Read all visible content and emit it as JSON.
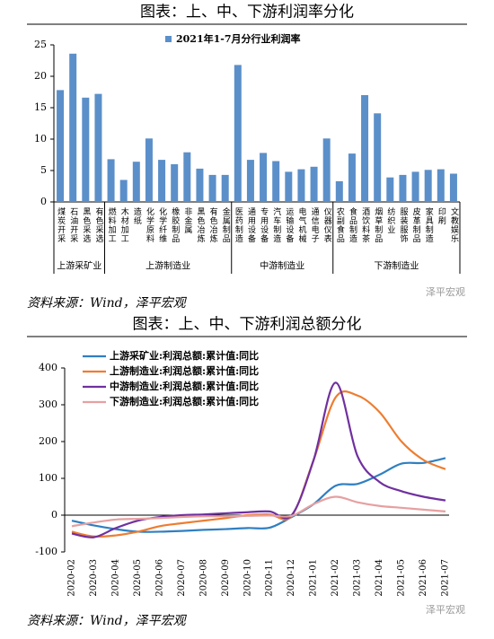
{
  "chart_data": [
    {
      "type": "bar",
      "title": "图表：上、中、下游利润率分化",
      "legend": "2021年1-7月分行业利润率",
      "color": "#5b8fc9",
      "categories": [
        "煤炭开采",
        "石油开采",
        "黑色采选",
        "有色采选",
        "燃料加工",
        "木材加工",
        "造纸",
        "化学原料",
        "化学纤维",
        "橡胶制品",
        "非金属",
        "黑色冶炼",
        "有色冶炼",
        "金属制品",
        "医药制造",
        "通用设备",
        "专用设备",
        "汽车制造",
        "运输设备",
        "电气机械",
        "通信电子",
        "仪器仪表",
        "农副食品",
        "食品制造",
        "酒饮料茶",
        "烟草制品",
        "纺织业",
        "服装服饰",
        "皮革制品",
        "家具制造",
        "印刷",
        "文教娱乐"
      ],
      "values": [
        17.8,
        23.6,
        16.6,
        17.2,
        6.8,
        3.5,
        6.4,
        10.1,
        6.7,
        6.0,
        7.9,
        5.3,
        4.3,
        4.3,
        21.8,
        6.7,
        7.8,
        6.5,
        4.8,
        5.2,
        5.6,
        10.1,
        3.3,
        7.7,
        17.0,
        14.1,
        3.9,
        4.3,
        4.8,
        5.1,
        5.2,
        4.5
      ],
      "groups": [
        "上游采矿业",
        "上游制造业",
        "中游制造业",
        "下游制造业"
      ],
      "ylim": [
        0,
        25
      ],
      "yticks": [
        0,
        5,
        10,
        15,
        20,
        25
      ],
      "source": "资料来源：Wind，泽平宏观",
      "watermark": "泽平宏观"
    },
    {
      "type": "line",
      "title": "图表：上、中、下游利润总额分化",
      "categories": [
        "2020-02",
        "2020-03",
        "2020-04",
        "2020-05",
        "2020-06",
        "2020-07",
        "2020-08",
        "2020-09",
        "2020-10",
        "2020-11",
        "2020-12",
        "2021-01",
        "2021-02",
        "2021-03",
        "2021-04",
        "2021-05",
        "2021-06",
        "2021-07"
      ],
      "series": [
        {
          "name": "上游采矿业:利润总额:累计值:同比",
          "color": "#2f7fc1",
          "values": [
            -15,
            -28,
            -38,
            -45,
            -45,
            -43,
            -40,
            -38,
            -35,
            -34,
            -5,
            30,
            80,
            85,
            110,
            140,
            142,
            155
          ]
        },
        {
          "name": "上游制造业:利润总额:累计值:同比",
          "color": "#ed7d31",
          "values": [
            -45,
            -58,
            -55,
            -45,
            -30,
            -22,
            -15,
            -8,
            0,
            2,
            -2,
            150,
            320,
            325,
            280,
            200,
            150,
            125
          ]
        },
        {
          "name": "中游制造业:利润总额:累计值:同比",
          "color": "#7030a0",
          "values": [
            -50,
            -60,
            -35,
            -15,
            -5,
            0,
            2,
            5,
            8,
            10,
            0,
            150,
            360,
            160,
            90,
            65,
            50,
            40
          ]
        },
        {
          "name": "下游制造业:利润总额:累计值:同比",
          "color": "#e6a0a0",
          "values": [
            -30,
            -20,
            -12,
            -10,
            -8,
            -5,
            -3,
            -3,
            -2,
            -1,
            -2,
            30,
            50,
            35,
            25,
            20,
            15,
            10
          ]
        }
      ],
      "ylim": [
        -100,
        400
      ],
      "yticks": [
        -100,
        0,
        100,
        200,
        300,
        400
      ],
      "legend_position": "upper left",
      "source": "资料来源：Wind，泽平宏观",
      "watermark": "泽平宏观"
    }
  ]
}
